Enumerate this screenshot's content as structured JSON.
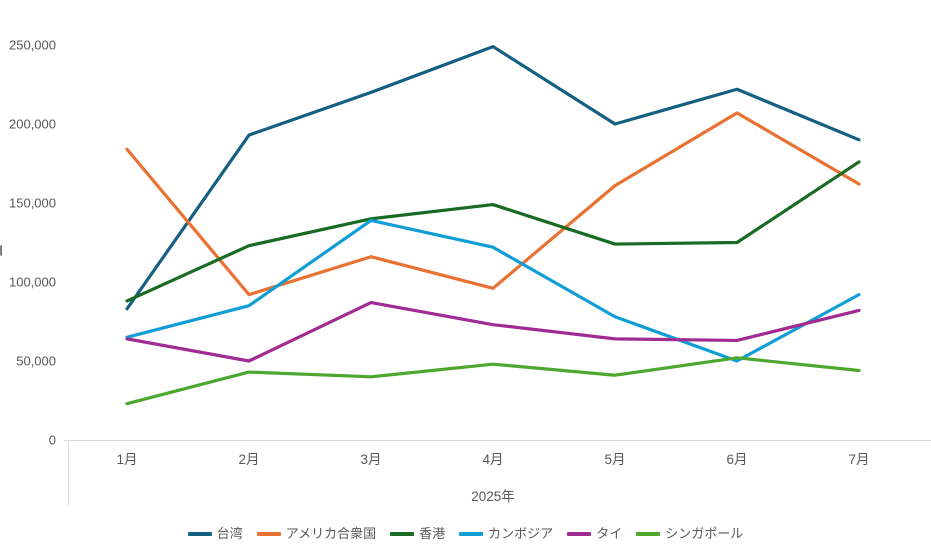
{
  "chart_data": {
    "type": "line",
    "title": "",
    "x_axis": {
      "categories": [
        "1月",
        "2月",
        "3月",
        "4月",
        "5月",
        "6月",
        "7月"
      ],
      "title": "2025年"
    },
    "y_axis": {
      "ticks": [
        0,
        50000,
        100000,
        150000,
        200000,
        250000
      ],
      "tick_labels": [
        "0",
        "50,000",
        "100,000",
        "150,000",
        "200,000",
        "250,000"
      ],
      "range": [
        0,
        250000
      ]
    },
    "grid": false,
    "legend_position": "bottom",
    "axis_color": "#D9D9D9",
    "label_color": "#595959",
    "series": [
      {
        "name": "台湾",
        "color": "#156082",
        "values": [
          83000,
          193000,
          220000,
          249000,
          200000,
          222000,
          190000
        ]
      },
      {
        "name": "アメリカ合衆国",
        "color": "#E97132",
        "values": [
          184000,
          92000,
          116000,
          96000,
          161000,
          207000,
          162000
        ]
      },
      {
        "name": "香港",
        "color": "#196B24",
        "values": [
          88000,
          123000,
          140000,
          149000,
          124000,
          125000,
          176000
        ]
      },
      {
        "name": "カンボジア",
        "color": "#0F9ED5",
        "values": [
          65000,
          85000,
          139000,
          122000,
          78000,
          50000,
          92000
        ]
      },
      {
        "name": "タイ",
        "color": "#A02B93",
        "values": [
          64000,
          50000,
          87000,
          73000,
          64000,
          63000,
          82000
        ]
      },
      {
        "name": "シンガポール",
        "color": "#4EA72E",
        "values": [
          23000,
          43000,
          40000,
          48000,
          41000,
          52000,
          44000
        ]
      }
    ]
  }
}
